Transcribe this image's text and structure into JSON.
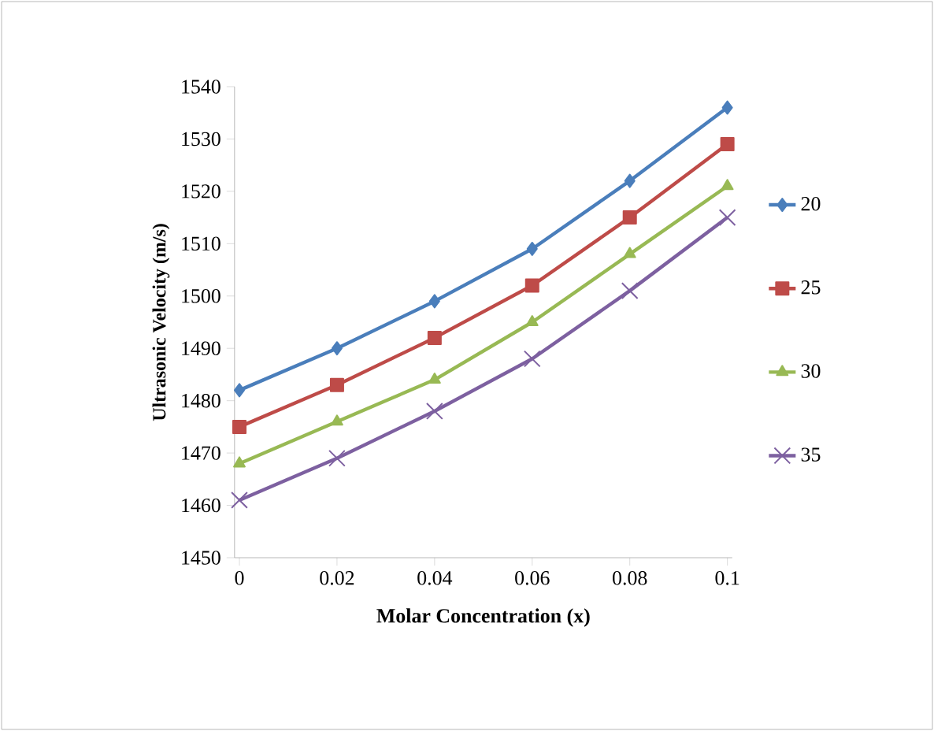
{
  "chart_data": {
    "type": "line",
    "xlabel": "Molar Concentration (x)",
    "ylabel": "Ultrasonic Velocity (m/s)",
    "categories": [
      "0",
      "0.02",
      "0.04",
      "0.06",
      "0.08",
      "0.1"
    ],
    "series": [
      {
        "name": "20",
        "color": "#4a7ebb",
        "marker": "diamond",
        "values": [
          1482,
          1490,
          1499,
          1509,
          1522,
          1536
        ]
      },
      {
        "name": "25",
        "color": "#be4b48",
        "marker": "square",
        "values": [
          1475,
          1483,
          1492,
          1502,
          1515,
          1529
        ]
      },
      {
        "name": "30",
        "color": "#98b954",
        "marker": "triangle",
        "values": [
          1468,
          1476,
          1484,
          1495,
          1508,
          1521
        ]
      },
      {
        "name": "35",
        "color": "#7d60a0",
        "marker": "cross",
        "values": [
          1461,
          1469,
          1478,
          1488,
          1501,
          1515
        ]
      }
    ],
    "ylim": [
      1450,
      1540
    ],
    "yticks": [
      1450,
      1460,
      1470,
      1480,
      1490,
      1500,
      1510,
      1520,
      1530,
      1540
    ],
    "grid": false,
    "legend": "right",
    "line_style": "solid"
  }
}
